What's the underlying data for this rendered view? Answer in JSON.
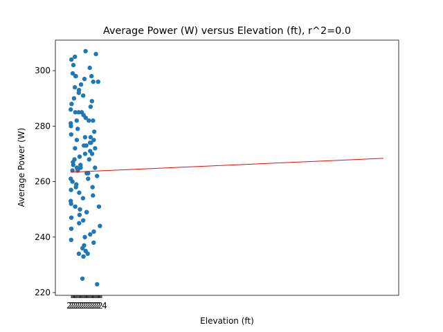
{
  "chart_data": {
    "type": "scatter",
    "title": "Average Power (W) versus Elevation (ft), r^2=0.0",
    "xlabel": "Elevation (ft)",
    "ylabel": "Average Power (W)",
    "ylim": [
      219,
      311
    ],
    "y_ticks": [
      220,
      240,
      260,
      280,
      300
    ],
    "x_tick_overlap_text": "2",
    "x_tick_last_text": "4",
    "grid": false,
    "legend": "none",
    "colors": {
      "points": "#1f77b4",
      "fit": "#ff0000"
    },
    "point_values_w": [
      307,
      306,
      305,
      304,
      302,
      301,
      299,
      298,
      298,
      298,
      297,
      296,
      296,
      295,
      294,
      293,
      292,
      291,
      290,
      289,
      288,
      287,
      286,
      285,
      285,
      285,
      284,
      283,
      282,
      282,
      282,
      281,
      280,
      279,
      278,
      277,
      276,
      276,
      275,
      275,
      274,
      274,
      273,
      273,
      272,
      272,
      271,
      270,
      270,
      269,
      268,
      268,
      267,
      266,
      266,
      265,
      265,
      265,
      264,
      264,
      263,
      263,
      262,
      261,
      261,
      260,
      259,
      258,
      258,
      257,
      256,
      255,
      254,
      253,
      252,
      251,
      251,
      250,
      249,
      249,
      248,
      247,
      246,
      245,
      244,
      243,
      242,
      241,
      240,
      239,
      238,
      237,
      236,
      235,
      234,
      234,
      233,
      225,
      223
    ],
    "fit_line": {
      "start_w": 263.4,
      "end_w": 268.4
    }
  }
}
